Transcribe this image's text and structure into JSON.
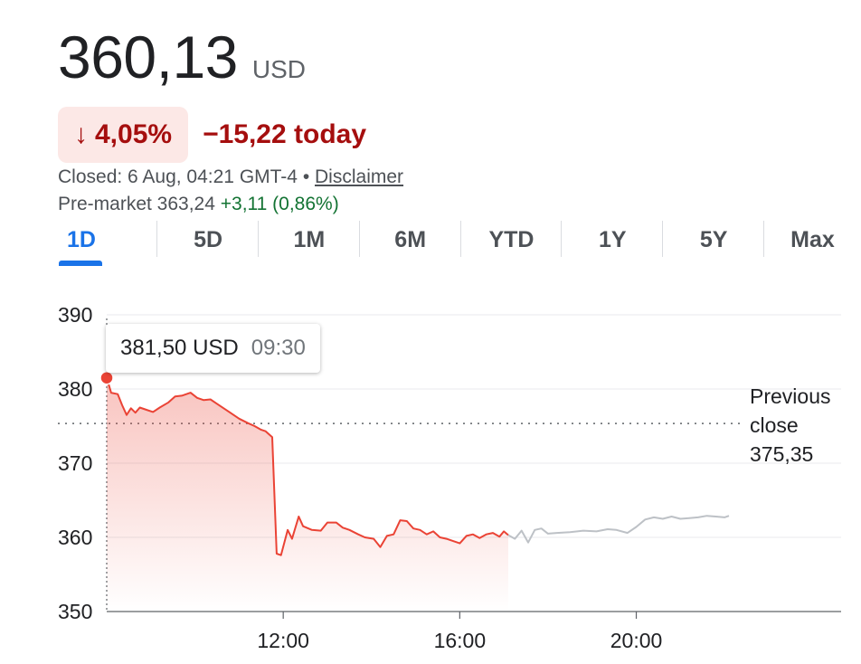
{
  "quote": {
    "price": "360,13",
    "currency": "USD",
    "change_arrow": "↓",
    "change_percent": "4,05%",
    "change_today": "−15,22 today",
    "closed_text": "Closed: 6 Aug, 04:21 GMT-4 •",
    "disclaimer": "Disclaimer",
    "premarket_label": "Pre-market 363,24",
    "premarket_change": "+3,11 (0,86%)"
  },
  "tabs": [
    {
      "label": "1D",
      "active": true
    },
    {
      "label": "5D",
      "active": false
    },
    {
      "label": "1M",
      "active": false
    },
    {
      "label": "6M",
      "active": false
    },
    {
      "label": "YTD",
      "active": false
    },
    {
      "label": "1Y",
      "active": false
    },
    {
      "label": "5Y",
      "active": false
    },
    {
      "label": "Max",
      "active": false
    }
  ],
  "tooltip": {
    "value": "381,50 USD",
    "time": "09:30"
  },
  "previous_close": {
    "line1": "Previous",
    "line2": "close",
    "value": "375,35"
  },
  "colors": {
    "down": "#ea4335",
    "down_text": "#a50e0e",
    "down_badge": "#fce8e6",
    "up_text": "#137333",
    "after_hours": "#bdc1c6",
    "accent": "#1a73e8"
  },
  "chart_data": {
    "type": "line",
    "ylim": [
      350,
      390
    ],
    "y_ticks": [
      390,
      380,
      370,
      360,
      350
    ],
    "x_range": [
      8,
      23
    ],
    "x_ticks": [
      {
        "x": 12,
        "label": "12:00"
      },
      {
        "x": 16,
        "label": "16:00"
      },
      {
        "x": 20,
        "label": "20:00"
      }
    ],
    "previous_close": 375.35,
    "marker": {
      "x": 8,
      "y": 381.5
    },
    "series": [
      {
        "kind": "regular",
        "points": [
          [
            8,
            381.5
          ],
          [
            8.1,
            379.5
          ],
          [
            8.25,
            379.3
          ],
          [
            8.35,
            377.8
          ],
          [
            8.45,
            376.5
          ],
          [
            8.55,
            377.4
          ],
          [
            8.65,
            376.8
          ],
          [
            8.75,
            377.5
          ],
          [
            8.9,
            377.2
          ],
          [
            9.05,
            376.9
          ],
          [
            9.2,
            377.5
          ],
          [
            9.4,
            378.2
          ],
          [
            9.55,
            379.0
          ],
          [
            9.7,
            379.1
          ],
          [
            9.9,
            379.5
          ],
          [
            10.05,
            378.8
          ],
          [
            10.2,
            378.5
          ],
          [
            10.35,
            378.6
          ],
          [
            10.5,
            378.0
          ],
          [
            10.65,
            377.4
          ],
          [
            10.8,
            376.8
          ],
          [
            11.0,
            376.0
          ],
          [
            11.2,
            375.4
          ],
          [
            11.35,
            375.0
          ],
          [
            11.5,
            374.5
          ],
          [
            11.6,
            374.3
          ],
          [
            11.75,
            373.5
          ],
          [
            11.85,
            357.8
          ],
          [
            11.95,
            357.6
          ],
          [
            12.1,
            361.0
          ],
          [
            12.2,
            359.8
          ],
          [
            12.35,
            362.8
          ],
          [
            12.45,
            361.5
          ],
          [
            12.65,
            361.0
          ],
          [
            12.85,
            360.9
          ],
          [
            13.0,
            362.0
          ],
          [
            13.2,
            362.0
          ],
          [
            13.35,
            361.3
          ],
          [
            13.5,
            361.0
          ],
          [
            13.7,
            360.4
          ],
          [
            13.85,
            360.0
          ],
          [
            14.05,
            359.8
          ],
          [
            14.2,
            358.7
          ],
          [
            14.35,
            360.2
          ],
          [
            14.5,
            360.4
          ],
          [
            14.65,
            362.3
          ],
          [
            14.8,
            362.2
          ],
          [
            14.95,
            361.2
          ],
          [
            15.1,
            361.0
          ],
          [
            15.25,
            360.4
          ],
          [
            15.4,
            360.8
          ],
          [
            15.55,
            360.0
          ],
          [
            15.7,
            359.8
          ],
          [
            15.85,
            359.5
          ],
          [
            16.0,
            359.2
          ],
          [
            16.15,
            360.2
          ],
          [
            16.3,
            360.4
          ],
          [
            16.45,
            359.9
          ],
          [
            16.6,
            360.4
          ],
          [
            16.75,
            360.6
          ],
          [
            16.9,
            360.1
          ],
          [
            17.0,
            360.8
          ],
          [
            17.1,
            360.3
          ]
        ]
      },
      {
        "kind": "after-hours",
        "points": [
          [
            17.1,
            360.3
          ],
          [
            17.25,
            359.8
          ],
          [
            17.4,
            360.9
          ],
          [
            17.55,
            359.3
          ],
          [
            17.7,
            361.0
          ],
          [
            17.85,
            361.2
          ],
          [
            18.0,
            360.5
          ],
          [
            18.2,
            360.6
          ],
          [
            18.5,
            360.7
          ],
          [
            18.8,
            360.9
          ],
          [
            19.1,
            360.8
          ],
          [
            19.35,
            361.1
          ],
          [
            19.55,
            361.0
          ],
          [
            19.8,
            360.6
          ],
          [
            20.0,
            361.4
          ],
          [
            20.2,
            362.4
          ],
          [
            20.4,
            362.7
          ],
          [
            20.6,
            362.5
          ],
          [
            20.8,
            362.8
          ],
          [
            21.0,
            362.5
          ],
          [
            21.2,
            362.6
          ],
          [
            21.4,
            362.7
          ],
          [
            21.6,
            362.9
          ],
          [
            21.8,
            362.8
          ],
          [
            22.0,
            362.7
          ],
          [
            22.1,
            362.9
          ]
        ]
      }
    ]
  }
}
